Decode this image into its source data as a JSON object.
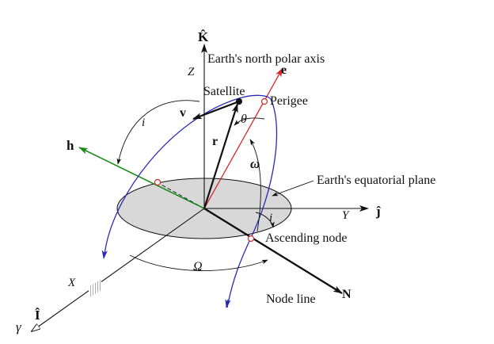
{
  "labels": {
    "k_hat": "K̂",
    "north_polar_axis": "Earth's north polar axis",
    "z_axis": "Z",
    "e_vector": "e",
    "satellite": "Satellite",
    "perigee": "Perigee",
    "v_vector": "v",
    "theta": "θ",
    "r_vector": "r",
    "i_upper": "i",
    "h_vector": "h",
    "omega_small": "ω",
    "equatorial_plane": "Earth's equatorial plane",
    "y_axis": "Y",
    "j_hat": "ĵ",
    "i_lower": "i",
    "ascending_node": "Ascending node",
    "x_axis": "X",
    "omega_big": "Ω",
    "node_line": "Node line",
    "n_vector": "N",
    "i_hat": "Î",
    "gamma": "γ"
  },
  "colors": {
    "orbit": "#2a2ab8",
    "eccentricity_vector": "#d42a2a",
    "angular_momentum_vector": "#1c8a1c",
    "equatorial_plane_fill": "#d8d8d8",
    "axis": "#111111"
  }
}
